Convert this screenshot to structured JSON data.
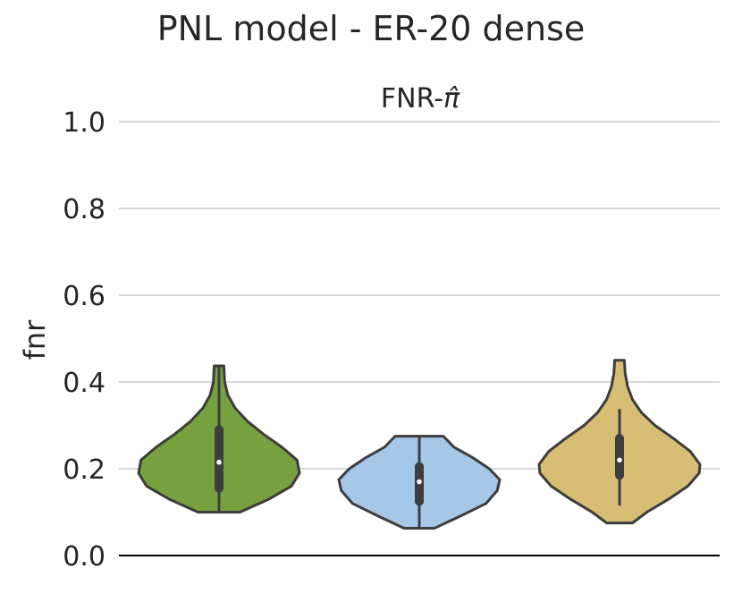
{
  "chart_data": {
    "type": "violin",
    "title": "PNL model - ER-20 dense",
    "subtitle": "FNR-π̂",
    "subtitle_main": "FNR-",
    "subtitle_symbol": "π̂",
    "xlabel": "",
    "ylabel": "fnr",
    "ylim": [
      0.0,
      1.0
    ],
    "yticks": [
      0.0,
      0.2,
      0.4,
      0.6,
      0.8,
      1.0
    ],
    "ytick_labels": [
      "0.0",
      "0.2",
      "0.4",
      "0.6",
      "0.8",
      "1.0"
    ],
    "grid": true,
    "legend": "none",
    "series": [
      {
        "color": "#77a13f",
        "min": 0.1,
        "q1": 0.155,
        "median": 0.215,
        "q3": 0.29,
        "max": 0.437,
        "whisker_low": 0.1,
        "whisker_high": 0.437,
        "density": [
          [
            0.1,
            0.26
          ],
          [
            0.13,
            0.62
          ],
          [
            0.16,
            0.9
          ],
          [
            0.19,
            1.0
          ],
          [
            0.22,
            0.97
          ],
          [
            0.25,
            0.78
          ],
          [
            0.28,
            0.55
          ],
          [
            0.31,
            0.35
          ],
          [
            0.34,
            0.2
          ],
          [
            0.37,
            0.11
          ],
          [
            0.4,
            0.07
          ],
          [
            0.437,
            0.06
          ]
        ]
      },
      {
        "color": "#a5c8e9",
        "min": 0.063,
        "q1": 0.125,
        "median": 0.17,
        "q3": 0.205,
        "max": 0.275,
        "whisker_low": 0.063,
        "whisker_high": 0.275,
        "density": [
          [
            0.063,
            0.19
          ],
          [
            0.09,
            0.5
          ],
          [
            0.12,
            0.83
          ],
          [
            0.15,
            0.97
          ],
          [
            0.175,
            1.0
          ],
          [
            0.2,
            0.87
          ],
          [
            0.225,
            0.67
          ],
          [
            0.25,
            0.43
          ],
          [
            0.275,
            0.3
          ]
        ]
      },
      {
        "color": "#d8bd74",
        "min": 0.075,
        "q1": 0.185,
        "median": 0.22,
        "q3": 0.27,
        "max": 0.45,
        "whisker_low": 0.115,
        "whisker_high": 0.338,
        "density": [
          [
            0.075,
            0.16
          ],
          [
            0.1,
            0.34
          ],
          [
            0.13,
            0.61
          ],
          [
            0.16,
            0.85
          ],
          [
            0.19,
            0.99
          ],
          [
            0.21,
            1.0
          ],
          [
            0.24,
            0.88
          ],
          [
            0.27,
            0.67
          ],
          [
            0.3,
            0.44
          ],
          [
            0.33,
            0.27
          ],
          [
            0.36,
            0.16
          ],
          [
            0.39,
            0.1
          ],
          [
            0.42,
            0.07
          ],
          [
            0.45,
            0.06
          ]
        ]
      }
    ]
  }
}
